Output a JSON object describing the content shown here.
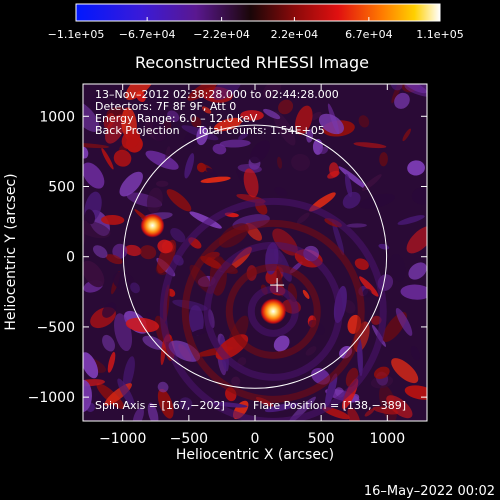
{
  "chart_data": {
    "type": "heatmap",
    "title": "Reconstructed RHESSI Image",
    "xlabel": "Heliocentric X (arcsec)",
    "ylabel": "Heliocentric Y (arcsec)",
    "xlim": [
      -1300,
      1300
    ],
    "ylim": [
      -1170,
      1230
    ],
    "x_ticks": [
      {
        "value": -1000,
        "label": "−1000"
      },
      {
        "value": -500,
        "label": "−500"
      },
      {
        "value": 0,
        "label": "0"
      },
      {
        "value": 500,
        "label": "500"
      },
      {
        "value": 1000,
        "label": "1000"
      }
    ],
    "y_ticks": [
      {
        "value": 1000,
        "label": "1000"
      },
      {
        "value": 500,
        "label": "500"
      },
      {
        "value": 0,
        "label": "0"
      },
      {
        "value": -500,
        "label": "−500"
      },
      {
        "value": -1000,
        "label": "−1000"
      }
    ],
    "colorbar": {
      "range": [
        -110000,
        110000
      ],
      "ticks": [
        {
          "value": -110000,
          "label": "−1.1e+05"
        },
        {
          "value": -67000,
          "label": "−6.7e+04"
        },
        {
          "value": -22000,
          "label": "−2.2e+04"
        },
        {
          "value": 22000,
          "label": "2.2e+04"
        },
        {
          "value": 67000,
          "label": "6.7e+04"
        },
        {
          "value": 110000,
          "label": "1.1e+05"
        }
      ]
    },
    "annotations": {
      "time_range": "13–Nov–2012 02:38:28.000 to 02:44:28.000",
      "detectors": "Detectors: 7F 8F 9F, Att 0",
      "energy_range": "Energy Range: 6.0 – 12.0 keV",
      "method": "Back Projection",
      "total_counts": "Total counts: 1.54E+05",
      "spin_axis": "Spin Axis = [167,−202]",
      "flare_position": "Flare Position = [138,−389]"
    },
    "solar_limb": {
      "center": [
        0,
        0
      ],
      "radius_arcsec": 965
    },
    "spin_axis_marker": [
      167,
      -202
    ],
    "sources": [
      {
        "x": 138,
        "y": -389,
        "peak": 110000
      },
      {
        "x": -775,
        "y": 222,
        "peak": 95000
      }
    ]
  },
  "footer": {
    "date_stamp": "16–May–2022 00:02"
  }
}
